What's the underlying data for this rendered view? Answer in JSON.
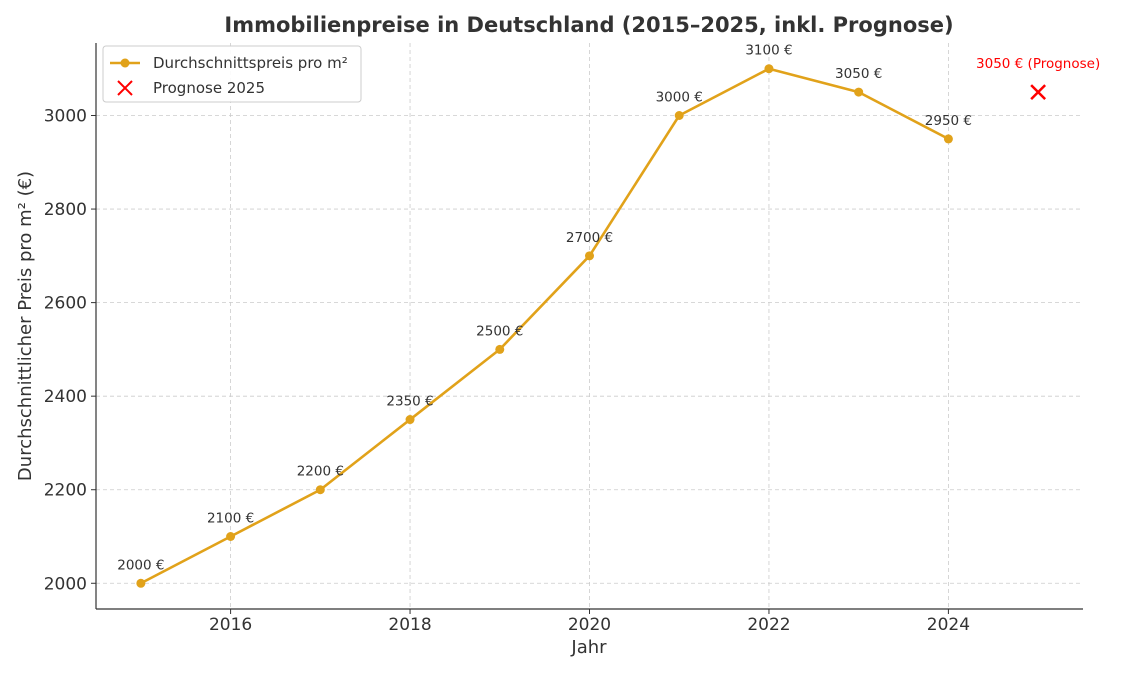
{
  "chart_data": {
    "type": "line",
    "title": "Immobilienpreise in Deutschland (2015–2025, inkl. Prognose)",
    "xlabel": "Jahr",
    "ylabel": "Durchschnittlicher Preis pro m² (€)",
    "x": [
      2015,
      2016,
      2017,
      2018,
      2019,
      2020,
      2021,
      2022,
      2023,
      2024
    ],
    "series": [
      {
        "name": "Durchschnittspreis pro m²",
        "values": [
          2000,
          2100,
          2200,
          2350,
          2500,
          2700,
          3000,
          3100,
          3050,
          2950
        ],
        "data_labels": [
          "2000 €",
          "2100 €",
          "2200 €",
          "2350 €",
          "2500 €",
          "2700 €",
          "3000 €",
          "3100 €",
          "3050 €",
          "2950 €"
        ],
        "color": "#E1A21A"
      }
    ],
    "forecast": {
      "name": "Prognose 2025",
      "x": 2025,
      "value": 3050,
      "label": "3050 € (Prognose)",
      "color": "#FF0000"
    },
    "xlim": [
      2014.5,
      2025.5
    ],
    "ylim": [
      1945,
      3155
    ],
    "xticks": [
      2016,
      2018,
      2020,
      2022,
      2024
    ],
    "yticks": [
      2000,
      2200,
      2400,
      2600,
      2800,
      3000
    ],
    "grid": true,
    "legend_position": "upper-left"
  }
}
